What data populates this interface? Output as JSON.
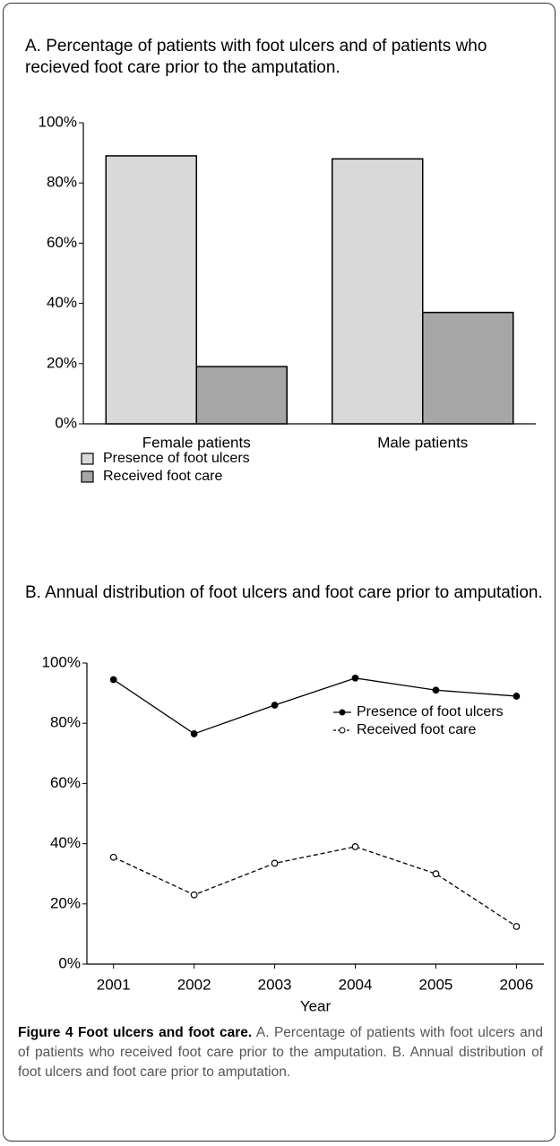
{
  "chart_data": [
    {
      "type": "bar",
      "title": "A. Percentage of patients with foot ulcers and of patients who recieved foot care prior to the amputation.",
      "categories": [
        "Female patients",
        "Male patients"
      ],
      "series": [
        {
          "name": "Presence of foot ulcers",
          "color": "#d9d9d9",
          "values": [
            89,
            88
          ]
        },
        {
          "name": "Received foot care",
          "color": "#a6a6a6",
          "values": [
            19,
            37
          ]
        }
      ],
      "ylim": [
        0,
        100
      ],
      "yticks": [
        {
          "value": 0,
          "label": "0%"
        },
        {
          "value": 20,
          "label": "20%"
        },
        {
          "value": 40,
          "label": "40%"
        },
        {
          "value": 60,
          "label": "60%"
        },
        {
          "value": 80,
          "label": "80%"
        },
        {
          "value": 100,
          "label": "100%"
        }
      ],
      "legend": "bottom-left"
    },
    {
      "type": "line",
      "title": "B. Annual distribution of foot ulcers and foot care prior to amputation.",
      "x": [
        2001,
        2002,
        2003,
        2004,
        2005,
        2006
      ],
      "xlim": [
        2000.67,
        2006.34
      ],
      "xticks": [
        2001,
        2002,
        2003,
        2004,
        2005,
        2006
      ],
      "xlabel": "Year",
      "series": [
        {
          "name": "Presence of foot ulcers",
          "color": "#000000",
          "dash": "solid",
          "marker": "filled",
          "values": [
            94.5,
            76.5,
            86,
            95,
            91,
            89
          ]
        },
        {
          "name": "Received foot care",
          "color": "#000000",
          "dash": "dashed",
          "marker": "open",
          "values": [
            35.5,
            23,
            33.5,
            39,
            30,
            12.5
          ]
        }
      ],
      "ylim": [
        0,
        100
      ],
      "yticks": [
        {
          "value": 0,
          "label": "0%"
        },
        {
          "value": 20,
          "label": "20%"
        },
        {
          "value": 40,
          "label": "40%"
        },
        {
          "value": 60,
          "label": "60%"
        },
        {
          "value": 80,
          "label": "80%"
        },
        {
          "value": 100,
          "label": "100%"
        }
      ],
      "legend": "right"
    }
  ],
  "caption": {
    "label": "Figure 4 Foot ulcers and foot care.",
    "text": "A. Percentage of patients with foot ulcers and of patients who received foot care prior to the amputation. B. Annual distribution of foot ulcers and foot care prior to amputation."
  }
}
